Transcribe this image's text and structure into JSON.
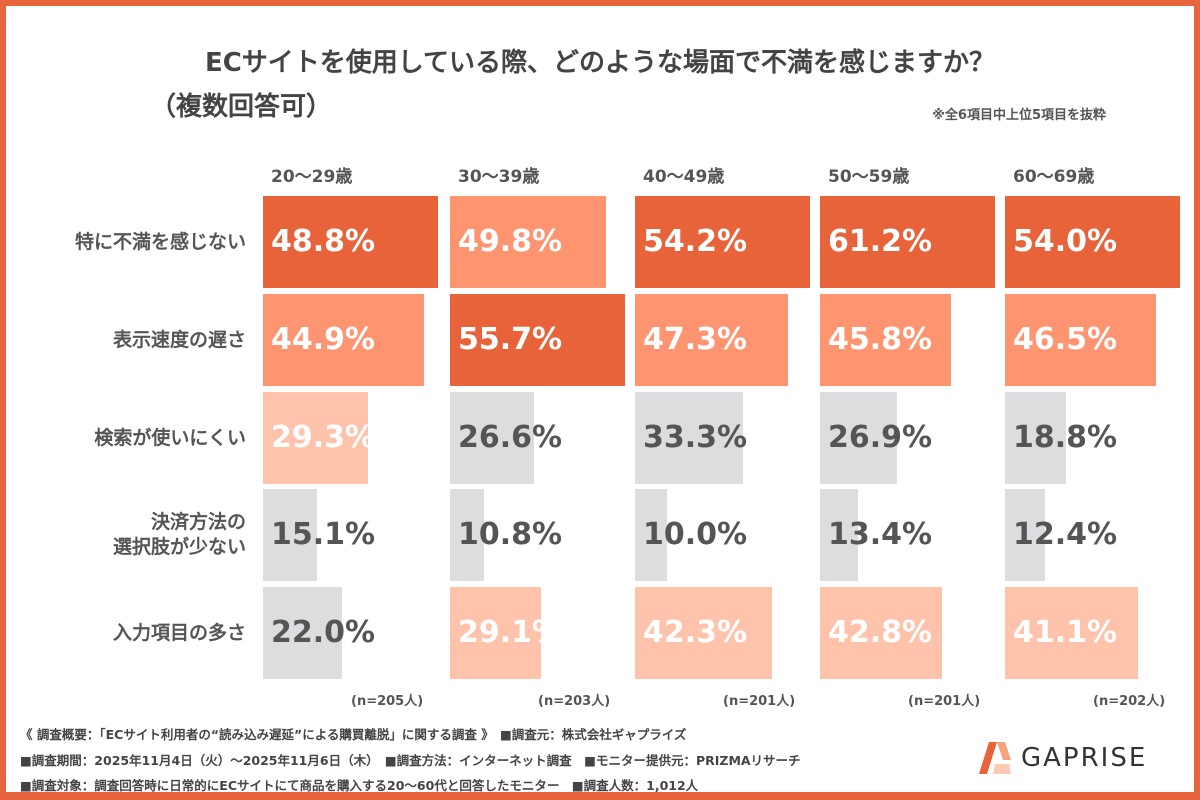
{
  "chart_data": {
    "type": "bar",
    "title": "ECサイトを使用している際、どのような場面で不満を感じますか？",
    "subtitle": "（複数回答可）",
    "note": "※全6項目中上位5項目を抜粋",
    "categories": [
      "特に不満を感じない",
      "表示速度の遅さ",
      "検索が使いにくい",
      "決済方法の\n選択肢が少ない",
      "入力項目の多さ"
    ],
    "series": [
      {
        "name": "20〜29歳",
        "n": "(n=205人)",
        "values": [
          48.8,
          44.9,
          29.3,
          15.1,
          22.0
        ]
      },
      {
        "name": "30〜39歳",
        "n": "(n=203人)",
        "values": [
          49.8,
          55.7,
          26.6,
          10.8,
          29.1
        ]
      },
      {
        "name": "40〜49歳",
        "n": "(n=201人)",
        "values": [
          54.2,
          47.3,
          33.3,
          10.0,
          42.3
        ]
      },
      {
        "name": "50〜59歳",
        "n": "(n=201人)",
        "values": [
          61.2,
          45.8,
          26.9,
          13.4,
          42.8
        ]
      },
      {
        "name": "60〜69歳",
        "n": "(n=202人)",
        "values": [
          54.0,
          46.5,
          18.8,
          12.4,
          41.1
        ]
      }
    ],
    "unit": "%",
    "rank_colors": [
      "#E8623A",
      "#FF9470",
      "#FFC3AC",
      "#DDDDE0"
    ]
  },
  "footer": [
    "《 調査概要：「ECサイト利用者の“読み込み遅延”による購買離脱」に関する調査 》　■調査元：株式会社ギャプライズ",
    "■調査期間：2025年11月4日（火）〜2025年11月6日（木）　■調査方法：インターネット調査　■モニター提供元：PRIZMAリサーチ",
    "■調査対象：調査回答時に日常的にECサイトにて商品を購入する20〜60代と回答したモニター　■調査人数：1,012人"
  ],
  "logo": "GAPRISE"
}
